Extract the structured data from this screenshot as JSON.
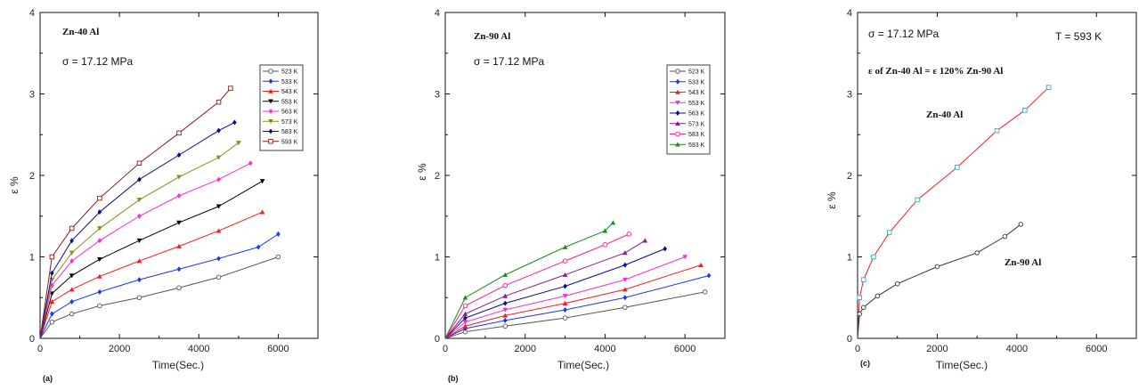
{
  "chart_data": [
    {
      "type": "line",
      "panel_label": "(a)",
      "xlabel": "Time(Sec.)",
      "ylabel": "ε %",
      "xlim": [
        0,
        7000
      ],
      "ylim": [
        0,
        4
      ],
      "xticks": [
        0,
        2000,
        4000,
        6000
      ],
      "yticks": [
        0,
        1,
        2,
        3,
        4
      ],
      "annotations": [
        "Zn-40 Al",
        "σ = 17.12 MPa"
      ],
      "legend_position": "right",
      "series": [
        {
          "name": "523 K",
          "color": "#555555",
          "marker": "o",
          "x": [
            0,
            300,
            800,
            1500,
            2500,
            3500,
            4500,
            6000
          ],
          "y": [
            0,
            0.2,
            0.3,
            0.4,
            0.5,
            0.62,
            0.75,
            1.0
          ]
        },
        {
          "name": "533 K",
          "color": "#1a33ff",
          "marker": "diamond",
          "x": [
            0,
            300,
            800,
            1500,
            2500,
            3500,
            4500,
            5500,
            6000
          ],
          "y": [
            0,
            0.3,
            0.45,
            0.57,
            0.72,
            0.85,
            0.98,
            1.12,
            1.28
          ]
        },
        {
          "name": "543 K",
          "color": "#ff1a1a",
          "marker": "triangle-up",
          "x": [
            0,
            300,
            800,
            1500,
            2500,
            3500,
            4500,
            5600
          ],
          "y": [
            0,
            0.45,
            0.6,
            0.76,
            0.95,
            1.13,
            1.32,
            1.55
          ]
        },
        {
          "name": "553 K",
          "color": "#000000",
          "marker": "triangle-down",
          "x": [
            0,
            300,
            800,
            1500,
            2500,
            3500,
            4500,
            5600
          ],
          "y": [
            0,
            0.55,
            0.77,
            0.97,
            1.2,
            1.42,
            1.62,
            1.93
          ]
        },
        {
          "name": "563 K",
          "color": "#ff2bd8",
          "marker": "diamond",
          "x": [
            0,
            300,
            800,
            1500,
            2500,
            3500,
            4500,
            5300
          ],
          "y": [
            0,
            0.65,
            0.95,
            1.2,
            1.5,
            1.75,
            1.95,
            2.15
          ]
        },
        {
          "name": "573 K",
          "color": "#8c8a18",
          "marker": "triangle-down",
          "x": [
            0,
            300,
            800,
            1500,
            2500,
            3500,
            4500,
            5000
          ],
          "y": [
            0,
            0.72,
            1.05,
            1.35,
            1.7,
            1.98,
            2.22,
            2.4
          ]
        },
        {
          "name": "583 K",
          "color": "#0a0a8c",
          "marker": "diamond",
          "x": [
            0,
            300,
            800,
            1500,
            2500,
            3500,
            4500,
            4900
          ],
          "y": [
            0,
            0.8,
            1.2,
            1.55,
            1.95,
            2.25,
            2.55,
            2.65
          ]
        },
        {
          "name": "593 K",
          "color": "#8c1a1a",
          "marker": "square-open",
          "x": [
            0,
            300,
            800,
            1500,
            2500,
            3500,
            4500,
            4800
          ],
          "y": [
            0,
            1.0,
            1.35,
            1.72,
            2.15,
            2.52,
            2.9,
            3.07
          ]
        }
      ]
    },
    {
      "type": "line",
      "panel_label": "(b)",
      "xlabel": "Time(Sec.)",
      "ylabel": "ε %",
      "xlim": [
        0,
        7000
      ],
      "ylim": [
        0,
        4
      ],
      "xticks": [
        0,
        2000,
        4000,
        6000
      ],
      "yticks": [
        0,
        1,
        2,
        3,
        4
      ],
      "annotations": [
        "Zn-90 Al",
        "σ = 17.12 MPa"
      ],
      "legend_position": "right",
      "series": [
        {
          "name": "523 K",
          "color": "#555555",
          "marker": "o",
          "x": [
            0,
            500,
            1500,
            3000,
            4500,
            6500
          ],
          "y": [
            0,
            0.08,
            0.15,
            0.25,
            0.38,
            0.57
          ]
        },
        {
          "name": "533 K",
          "color": "#1a33ff",
          "marker": "diamond",
          "x": [
            0,
            500,
            1500,
            3000,
            4500,
            6600
          ],
          "y": [
            0,
            0.12,
            0.22,
            0.35,
            0.5,
            0.77
          ]
        },
        {
          "name": "543 K",
          "color": "#ff1a1a",
          "marker": "triangle-up",
          "x": [
            0,
            500,
            1500,
            3000,
            4500,
            6400
          ],
          "y": [
            0,
            0.15,
            0.28,
            0.43,
            0.6,
            0.9
          ]
        },
        {
          "name": "553 K",
          "color": "#ff2bd8",
          "marker": "triangle-down",
          "x": [
            0,
            500,
            1500,
            3000,
            4500,
            6000
          ],
          "y": [
            0,
            0.2,
            0.35,
            0.52,
            0.72,
            1.0
          ]
        },
        {
          "name": "563 K",
          "color": "#0a0a8c",
          "marker": "diamond",
          "x": [
            0,
            500,
            1500,
            3000,
            4500,
            5500
          ],
          "y": [
            0,
            0.25,
            0.43,
            0.64,
            0.9,
            1.1
          ]
        },
        {
          "name": "573 K",
          "color": "#8c1a8c",
          "marker": "triangle-up",
          "x": [
            0,
            500,
            1500,
            3000,
            4500,
            5000
          ],
          "y": [
            0,
            0.3,
            0.52,
            0.78,
            1.05,
            1.2
          ]
        },
        {
          "name": "583 K",
          "color": "#ff1a8c",
          "marker": "o",
          "x": [
            0,
            500,
            1500,
            3000,
            4000,
            4600
          ],
          "y": [
            0,
            0.4,
            0.65,
            0.95,
            1.15,
            1.28
          ]
        },
        {
          "name": "593 K",
          "color": "#1a8c1a",
          "marker": "triangle-up",
          "x": [
            0,
            500,
            1500,
            3000,
            4000,
            4200
          ],
          "y": [
            0,
            0.5,
            0.78,
            1.12,
            1.32,
            1.42
          ]
        }
      ]
    },
    {
      "type": "line",
      "panel_label": "(c)",
      "xlabel": "Time(Sec.)",
      "ylabel": "ε %",
      "xlim": [
        0,
        7000
      ],
      "ylim": [
        0,
        4
      ],
      "xticks": [
        0,
        2000,
        4000,
        6000
      ],
      "yticks": [
        0,
        1,
        2,
        3,
        4
      ],
      "annotations": [
        "σ = 17.12 MPa",
        "T = 593 K",
        "ε of  Zn-40 Al = ε 120%  Zn-90 Al",
        "Zn-40 Al",
        "Zn-90 Al"
      ],
      "series": [
        {
          "name": "Zn-40 Al",
          "color": "#ff1a1a",
          "marker": "square-open",
          "marker_color": "#33aacc",
          "x": [
            0,
            50,
            150,
            400,
            800,
            1500,
            2500,
            3500,
            4200,
            4800
          ],
          "y": [
            0,
            0.5,
            0.72,
            1.0,
            1.3,
            1.7,
            2.1,
            2.55,
            2.8,
            3.08
          ]
        },
        {
          "name": "Zn-90 Al",
          "color": "#333333",
          "marker": "o",
          "x": [
            0,
            50,
            150,
            500,
            1000,
            2000,
            3000,
            3700,
            4100
          ],
          "y": [
            0,
            0.3,
            0.38,
            0.52,
            0.67,
            0.88,
            1.05,
            1.25,
            1.4
          ]
        }
      ]
    }
  ]
}
